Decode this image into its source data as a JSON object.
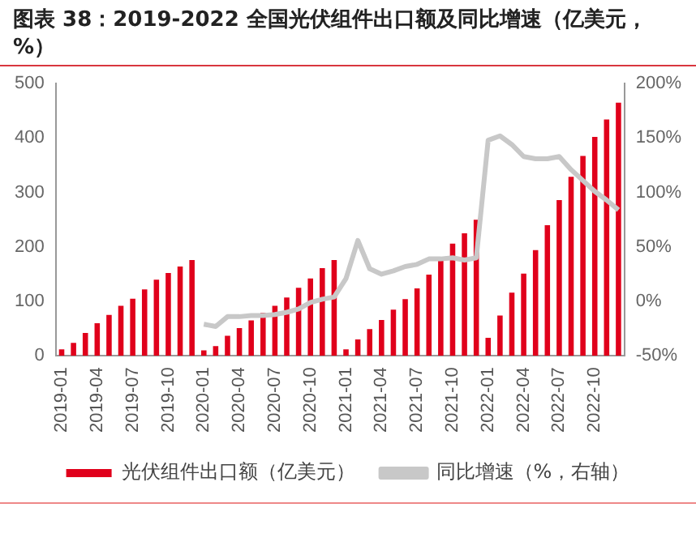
{
  "chart_data": {
    "type": "bar",
    "title": "图表 38：2019-2022 全国光伏组件出口额及同比增速（亿美元，%）",
    "categories": [
      "2019-01",
      null,
      null,
      "2019-04",
      null,
      null,
      "2019-07",
      null,
      null,
      "2019-10",
      null,
      null,
      "2020-01",
      null,
      null,
      "2020-04",
      null,
      null,
      "2020-07",
      null,
      null,
      "2020-10",
      null,
      null,
      "2021-01",
      null,
      null,
      "2021-04",
      null,
      null,
      "2021-07",
      null,
      null,
      "2021-10",
      null,
      null,
      "2022-01",
      null,
      null,
      "2022-04",
      null,
      null,
      "2022-07",
      null,
      null,
      "2022-10",
      null,
      null
    ],
    "series": [
      {
        "name": "光伏组件出口额（亿美元）",
        "color": "#e0001b",
        "values": [
          12,
          24,
          42,
          60,
          75,
          92,
          105,
          122,
          140,
          152,
          164,
          176,
          10,
          18,
          37,
          51,
          65,
          79,
          92,
          107,
          125,
          142,
          161,
          176,
          12,
          30,
          49,
          66,
          85,
          104,
          124,
          149,
          175,
          206,
          225,
          250,
          33,
          74,
          116,
          151,
          194,
          240,
          286,
          329,
          367,
          402,
          434,
          465
        ]
      },
      {
        "name": "同比增速（%，右轴）",
        "type": "line",
        "axis": "y2",
        "color": "#c8c8c8",
        "values": [
          null,
          null,
          null,
          null,
          null,
          null,
          null,
          null,
          null,
          null,
          null,
          null,
          -21,
          -23,
          -14,
          -14,
          -13,
          -13,
          -12,
          -10,
          -7,
          -1,
          2,
          4,
          21,
          56,
          30,
          25,
          28,
          32,
          34,
          39,
          39,
          40,
          38,
          40,
          148,
          152,
          144,
          133,
          131,
          131,
          133,
          121,
          111,
          101,
          93,
          84
        ]
      }
    ],
    "ylim": [
      0,
      500
    ],
    "yticks": [
      0,
      100,
      200,
      300,
      400,
      500
    ],
    "y2lim": [
      -50,
      200
    ],
    "y2ticks": [
      {
        "value": -50,
        "label": "-50%"
      },
      {
        "value": 0,
        "label": "0%"
      },
      {
        "value": 50,
        "label": "50%"
      },
      {
        "value": 100,
        "label": "100%"
      },
      {
        "value": 150,
        "label": "150%"
      },
      {
        "value": 200,
        "label": "200%"
      }
    ],
    "grid": false,
    "legend": "bottom",
    "marker": "none"
  }
}
